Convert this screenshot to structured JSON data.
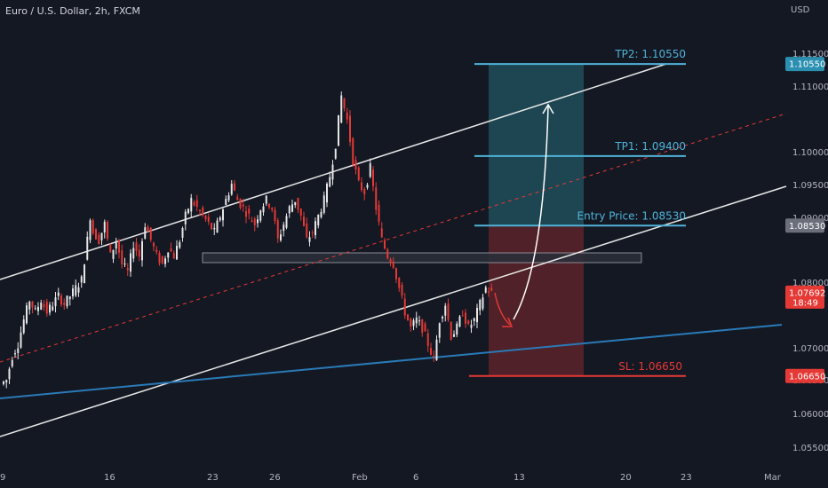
{
  "header": {
    "title": "Euro / U.S. Dollar, 2h, FXCM",
    "currency": "USD"
  },
  "colors": {
    "background": "#141823",
    "up": "#e6e6e6",
    "down": "#e53935",
    "channel": "#e8e8e8",
    "trendline": "#2a7ab8",
    "midline": "#e53935",
    "tp_zone": "#1f4f5a",
    "sl_zone": "#5a2329",
    "tp_tag": "#2a8fb0",
    "sl_tag": "#e53935",
    "entry_tag": "#6b6f7a"
  },
  "chart_data": {
    "type": "candlestick",
    "title": "Euro / U.S. Dollar, 2h, FXCM",
    "ylim": [
      1.0525,
      1.1135
    ],
    "y_ticks": [
      "1.11500",
      "1.11000",
      "1.10000",
      "1.09500",
      "1.09000",
      "1.08000",
      "1.07000",
      "1.06500",
      "1.06000",
      "1.05500"
    ],
    "x_ticks": [
      "9",
      "16",
      "23",
      "26",
      "Feb",
      "6",
      "13",
      "20",
      "23",
      "Mar"
    ],
    "series_path": [
      [
        0,
        1.0655
      ],
      [
        2,
        1.066
      ],
      [
        4,
        1.069
      ],
      [
        6,
        1.0705
      ],
      [
        8,
        1.0735
      ],
      [
        10,
        1.076
      ],
      [
        12,
        1.0745
      ],
      [
        14,
        1.076
      ],
      [
        16,
        1.0745
      ],
      [
        18,
        1.0755
      ],
      [
        20,
        1.0765
      ],
      [
        22,
        1.0755
      ],
      [
        24,
        1.0765
      ],
      [
        26,
        1.0775
      ],
      [
        28,
        1.0785
      ],
      [
        30,
        1.0835
      ],
      [
        31,
        1.0865
      ],
      [
        32,
        1.0845
      ],
      [
        34,
        1.0835
      ],
      [
        36,
        1.0855
      ],
      [
        38,
        1.0815
      ],
      [
        40,
        1.0835
      ],
      [
        42,
        1.0805
      ],
      [
        44,
        1.0795
      ],
      [
        46,
        1.083
      ],
      [
        48,
        1.0815
      ],
      [
        50,
        1.0855
      ],
      [
        52,
        1.0835
      ],
      [
        54,
        1.0815
      ],
      [
        56,
        1.0805
      ],
      [
        58,
        1.0825
      ],
      [
        60,
        1.0815
      ],
      [
        62,
        1.0835
      ],
      [
        64,
        1.0865
      ],
      [
        66,
        1.0885
      ],
      [
        68,
        1.0875
      ],
      [
        70,
        1.0865
      ],
      [
        72,
        1.0855
      ],
      [
        74,
        1.0845
      ],
      [
        76,
        1.0865
      ],
      [
        78,
        1.0885
      ],
      [
        80,
        1.0905
      ],
      [
        82,
        1.0885
      ],
      [
        84,
        1.0875
      ],
      [
        86,
        1.0865
      ],
      [
        88,
        1.0855
      ],
      [
        90,
        1.0875
      ],
      [
        92,
        1.0885
      ],
      [
        94,
        1.0875
      ],
      [
        96,
        1.0835
      ],
      [
        98,
        1.0855
      ],
      [
        100,
        1.0875
      ],
      [
        102,
        1.0885
      ],
      [
        104,
        1.0865
      ],
      [
        106,
        1.0835
      ],
      [
        108,
        1.0845
      ],
      [
        110,
        1.0865
      ],
      [
        112,
        1.0885
      ],
      [
        114,
        1.0915
      ],
      [
        116,
        1.0955
      ],
      [
        118,
        1.1015
      ],
      [
        120,
        1.0985
      ],
      [
        122,
        1.0935
      ],
      [
        124,
        1.0905
      ],
      [
        126,
        1.0895
      ],
      [
        128,
        1.0925
      ],
      [
        130,
        1.0875
      ],
      [
        132,
        1.0835
      ],
      [
        134,
        1.0815
      ],
      [
        136,
        1.0805
      ],
      [
        138,
        1.0775
      ],
      [
        140,
        1.0745
      ],
      [
        142,
        1.0725
      ],
      [
        144,
        1.0735
      ],
      [
        146,
        1.0725
      ],
      [
        148,
        1.0705
      ],
      [
        150,
        1.0685
      ],
      [
        152,
        1.0735
      ],
      [
        154,
        1.0755
      ],
      [
        156,
        1.0715
      ],
      [
        158,
        1.0725
      ],
      [
        160,
        1.0745
      ],
      [
        162,
        1.0725
      ],
      [
        164,
        1.0735
      ],
      [
        166,
        1.0755
      ],
      [
        168,
        1.0775
      ],
      [
        170,
        1.0769
      ]
    ],
    "levels": {
      "tp2": {
        "label": "TP2: 1.10550",
        "value": 1.1055,
        "tag": "1.10550"
      },
      "tp1": {
        "label": "TP1: 1.09400",
        "value": 1.094
      },
      "entry": {
        "label": "Entry Price: 1.08530",
        "value": 1.0853,
        "tag": "1.08530"
      },
      "sl": {
        "label": "SL: 1.06650",
        "value": 1.0665,
        "tag": "1.06650"
      }
    },
    "current_price": {
      "value": 1.07692,
      "tag": "1.07692",
      "countdown": "18:49"
    }
  }
}
